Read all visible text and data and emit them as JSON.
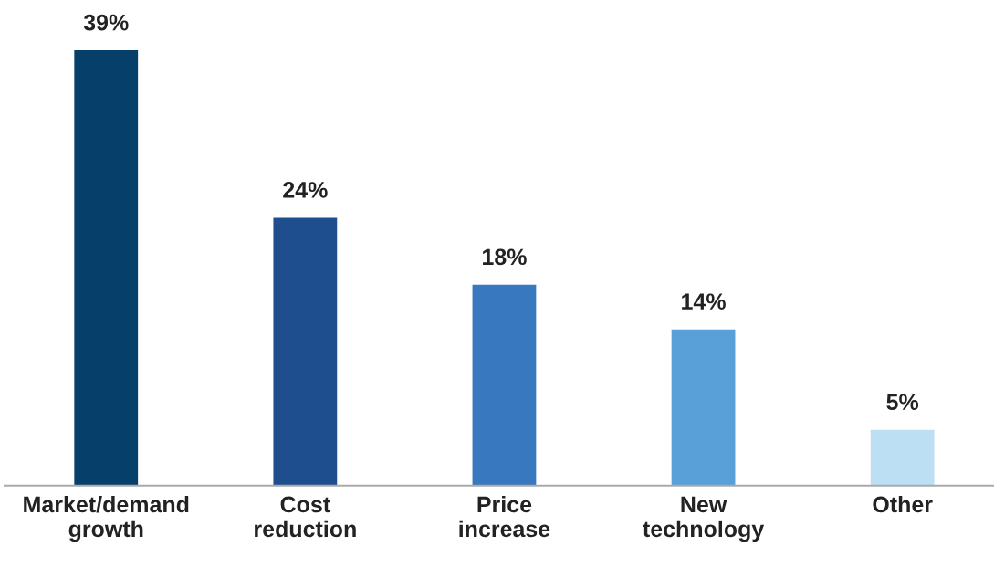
{
  "chart_data": {
    "type": "bar",
    "categories": [
      "Market/demand\ngrowth",
      "Cost\nreduction",
      "Price\nincrease",
      "New\ntechnology",
      "Other"
    ],
    "values": [
      39,
      24,
      18,
      14,
      5
    ],
    "colors": [
      "#073f6b",
      "#1f4e8e",
      "#3778be",
      "#5aa0d8",
      "#bddff4"
    ],
    "value_labels": [
      "39%",
      "24%",
      "18%",
      "14%",
      "5%"
    ],
    "grid": false,
    "legend": false
  }
}
